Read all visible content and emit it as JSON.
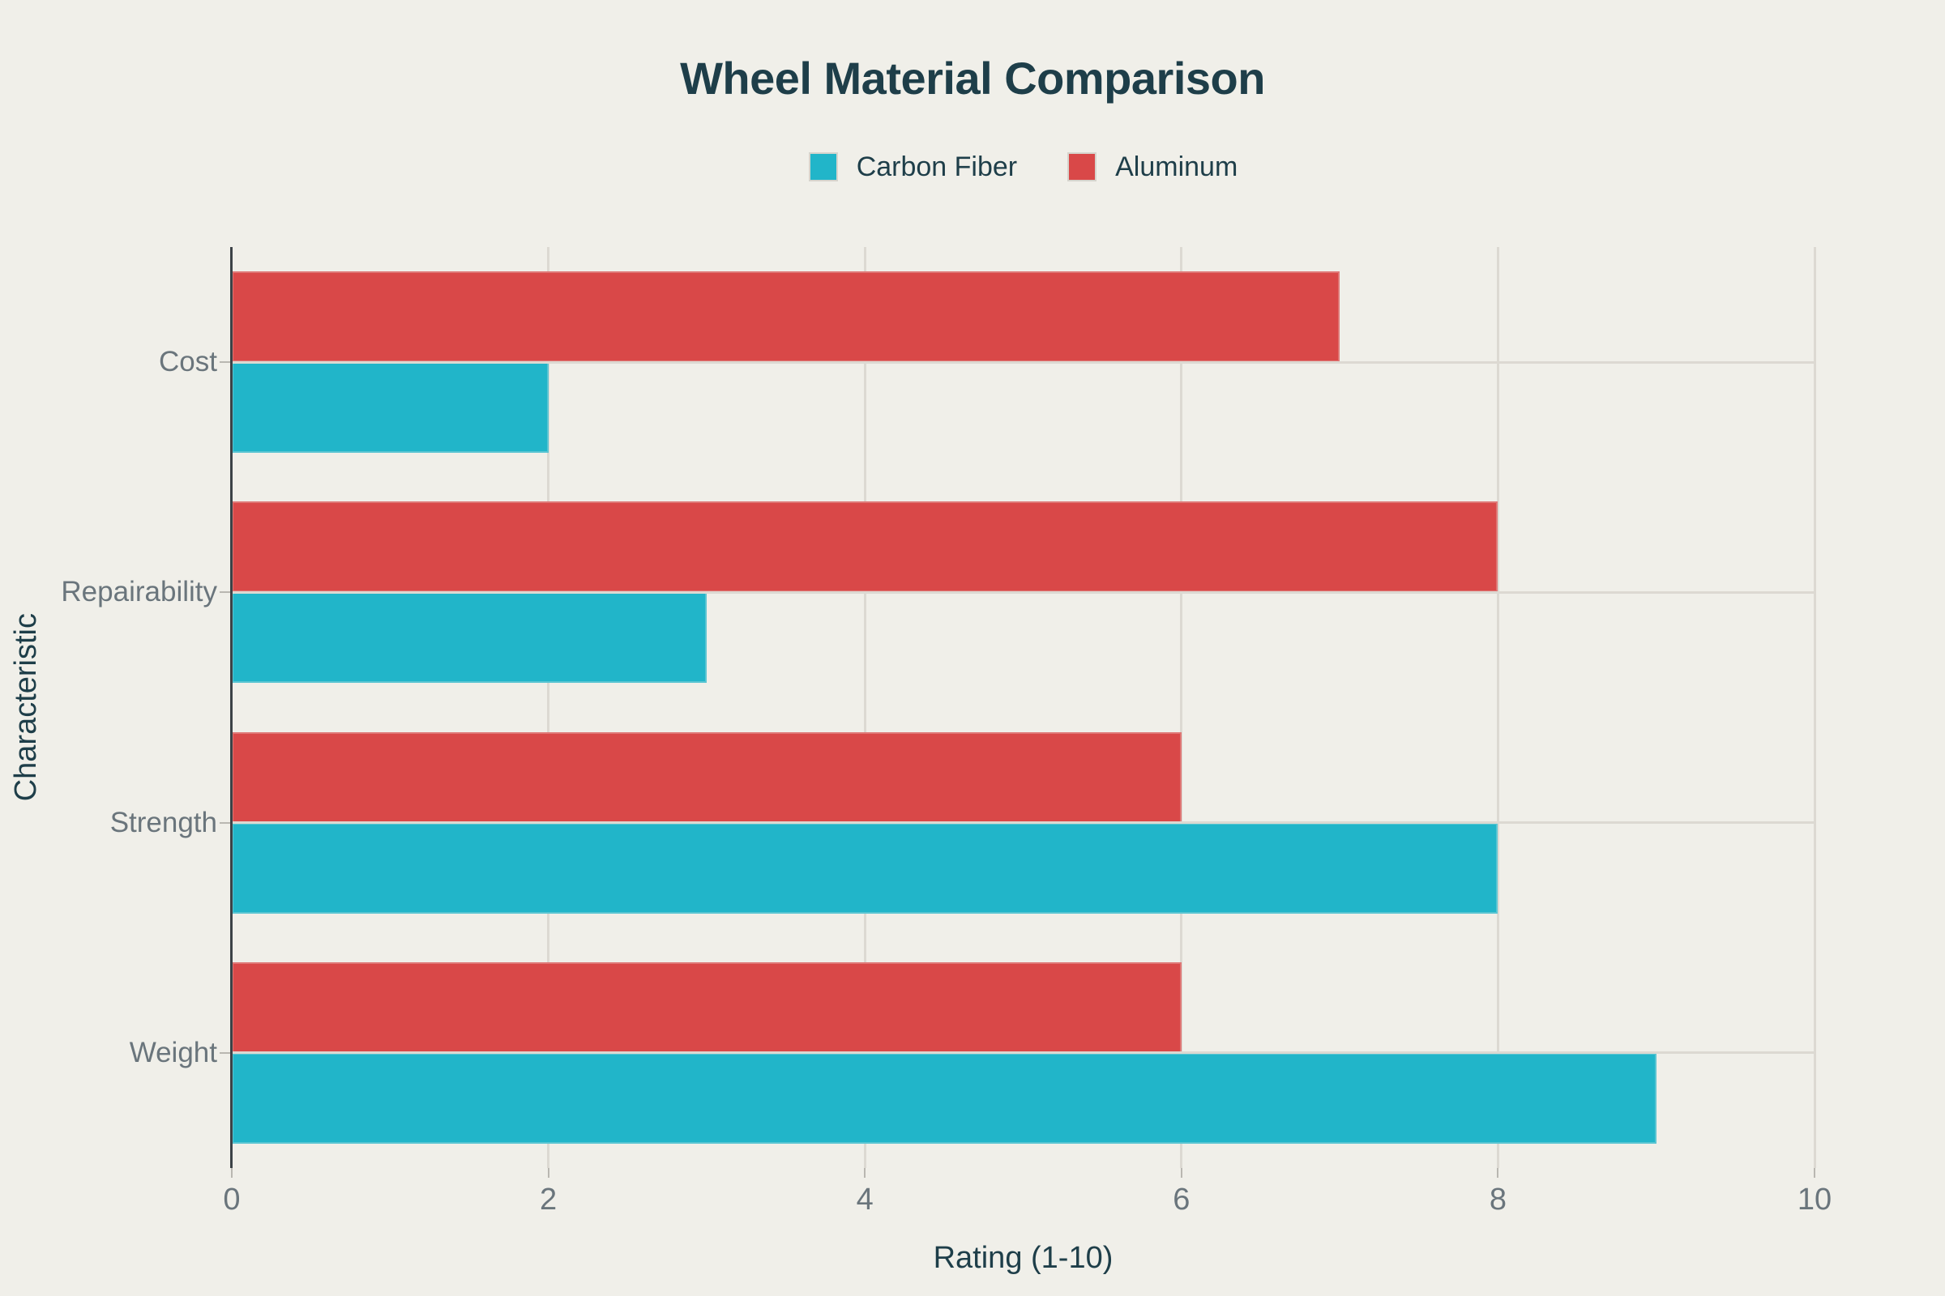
{
  "colors": {
    "background": "#f0efe9",
    "grid": "#dcd9d2",
    "axis_line": "#3c4247",
    "tick_mark": "#b9b7b1",
    "tick_label": "#6a757c",
    "heading": "#1e3e49",
    "carbon_fiber": "#21b5c9",
    "aluminum": "#d94848"
  },
  "chart_data": {
    "type": "bar",
    "orientation": "horizontal",
    "title": "Wheel Material Comparison",
    "xlabel": "Rating (1-10)",
    "ylabel": "Characteristic",
    "categories": [
      "Cost",
      "Repairability",
      "Strength",
      "Weight"
    ],
    "series": [
      {
        "name": "Carbon Fiber",
        "color": "#21b5c9",
        "values": [
          2,
          3,
          8,
          9
        ]
      },
      {
        "name": "Aluminum",
        "color": "#d94848",
        "values": [
          7,
          8,
          6,
          6
        ]
      }
    ],
    "series_top_to_bottom": [
      "Aluminum",
      "Carbon Fiber"
    ],
    "xlim": [
      0,
      10
    ],
    "xticks": [
      0,
      2,
      4,
      6,
      8,
      10
    ],
    "grid": true,
    "legend_position": "top-center"
  }
}
